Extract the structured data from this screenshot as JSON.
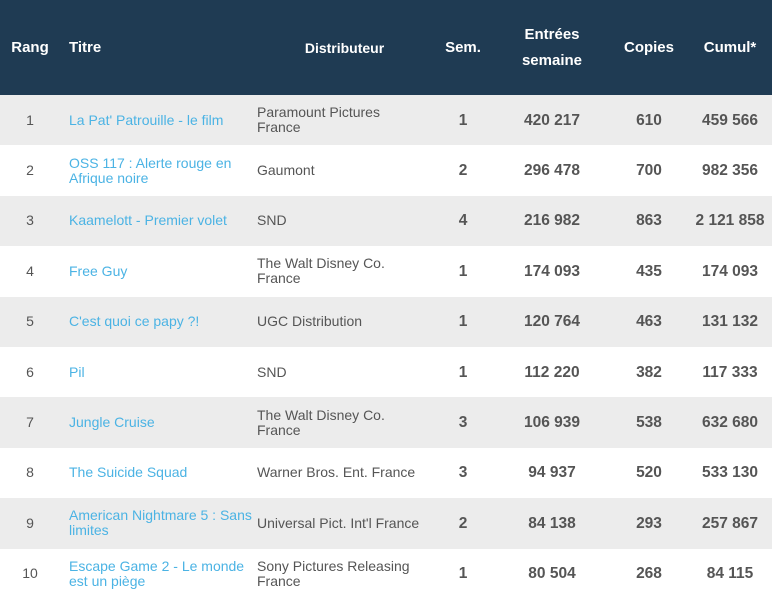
{
  "columns": {
    "rank": "Rang",
    "title": "Titre",
    "distributor": "Distributeur",
    "weeks": "Sem.",
    "entries_line1": "Entrées",
    "entries_line2": "semaine",
    "copies": "Copies",
    "cumul": "Cumul*"
  },
  "colors": {
    "header_bg": "#1f3b53",
    "link": "#4bb3e4",
    "row_alt": "#ececec"
  },
  "rows": [
    {
      "rank": "1",
      "title": "La Pat' Patrouille - le film",
      "distributor": "Paramount Pictures France",
      "weeks": "1",
      "entries": "420 217",
      "copies": "610",
      "cumul": "459 566"
    },
    {
      "rank": "2",
      "title": "OSS 117 : Alerte rouge en Afrique noire",
      "distributor": "Gaumont",
      "weeks": "2",
      "entries": "296 478",
      "copies": "700",
      "cumul": "982 356"
    },
    {
      "rank": "3",
      "title": "Kaamelott - Premier volet",
      "distributor": "SND",
      "weeks": "4",
      "entries": "216 982",
      "copies": "863",
      "cumul": "2 121 858"
    },
    {
      "rank": "4",
      "title": "Free Guy",
      "distributor": "The Walt Disney Co. France",
      "weeks": "1",
      "entries": "174 093",
      "copies": "435",
      "cumul": "174 093"
    },
    {
      "rank": "5",
      "title": "C'est quoi ce papy ?!",
      "distributor": "UGC Distribution",
      "weeks": "1",
      "entries": "120 764",
      "copies": "463",
      "cumul": "131 132"
    },
    {
      "rank": "6",
      "title": "Pil",
      "distributor": "SND",
      "weeks": "1",
      "entries": "112 220",
      "copies": "382",
      "cumul": "117 333"
    },
    {
      "rank": "7",
      "title": "Jungle Cruise",
      "distributor": "The Walt Disney Co. France",
      "weeks": "3",
      "entries": "106 939",
      "copies": "538",
      "cumul": "632 680"
    },
    {
      "rank": "8",
      "title": "The Suicide Squad",
      "distributor": "Warner Bros. Ent. France",
      "weeks": "3",
      "entries": "94 937",
      "copies": "520",
      "cumul": "533 130"
    },
    {
      "rank": "9",
      "title": "American Nightmare 5 : Sans limites",
      "distributor": "Universal Pict. Int'l France",
      "weeks": "2",
      "entries": "84 138",
      "copies": "293",
      "cumul": "257 867"
    },
    {
      "rank": "10",
      "title": "Escape Game 2 - Le monde est un piège",
      "distributor": "Sony Pictures Releasing France",
      "weeks": "1",
      "entries": "80 504",
      "copies": "268",
      "cumul": "84 115"
    }
  ]
}
